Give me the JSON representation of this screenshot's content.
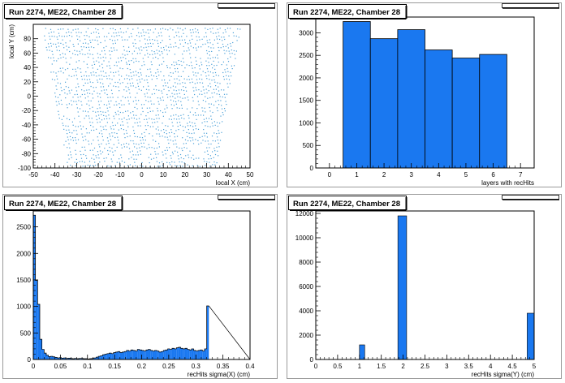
{
  "chart_data": [
    {
      "type": "scatter",
      "title": "Run 2274, ME22, Chamber 28",
      "xlabel": "local X (cm)",
      "ylabel": "local Y (cm)",
      "xlim": [
        -50,
        50
      ],
      "ylim": [
        -100,
        100
      ],
      "xticks": [
        -50,
        -40,
        -30,
        -20,
        -10,
        0,
        10,
        20,
        30,
        40,
        50
      ],
      "yticks": [
        -100,
        -80,
        -60,
        -40,
        -20,
        0,
        20,
        40,
        60,
        80
      ],
      "point_color": "#4aa0d8",
      "description_rows": {
        "y_values": [
          -96,
          -91,
          -86,
          -81,
          -76,
          -71,
          -66,
          -61,
          -56,
          -51,
          -46,
          -41,
          -36,
          -31,
          -26,
          -21,
          -16,
          -11,
          -6,
          -1,
          4,
          9,
          14,
          19,
          24,
          29,
          34,
          39,
          44,
          49,
          54,
          59,
          64,
          69,
          74,
          79,
          84,
          89,
          94
        ],
        "half_width_at_bottom": 34,
        "half_width_at_top": 46
      }
    },
    {
      "type": "bar",
      "title": "Run 2274, ME22, Chamber 28",
      "xlabel": "layers with recHits",
      "ylabel": "",
      "xlim": [
        -0.5,
        7.5
      ],
      "ylim": [
        0,
        3350
      ],
      "xticks": [
        0,
        1,
        2,
        3,
        4,
        5,
        6,
        7
      ],
      "yticks": [
        0,
        500,
        1000,
        1500,
        2000,
        2500,
        3000
      ],
      "categories": [
        1,
        2,
        3,
        4,
        5,
        6
      ],
      "values": [
        3250,
        2870,
        3070,
        2620,
        2440,
        2520
      ],
      "bar_color": "#1a78f0"
    },
    {
      "type": "bar",
      "title": "Run 2274, ME22, Chamber 28",
      "xlabel": "recHits sigma(X) (cm)",
      "ylabel": "",
      "xlim": [
        0,
        0.4
      ],
      "ylim": [
        0,
        2800
      ],
      "xticks": [
        0,
        0.05,
        0.1,
        0.15,
        0.2,
        0.25,
        0.3,
        0.35,
        0.4
      ],
      "yticks": [
        0,
        500,
        1000,
        1500,
        2000,
        2500
      ],
      "bin_start": 0,
      "bin_width": 0.004,
      "values": [
        2720,
        1490,
        1040,
        380,
        190,
        120,
        80,
        55,
        60,
        50,
        40,
        30,
        35,
        25,
        30,
        20,
        25,
        20,
        15,
        20,
        15,
        20,
        20,
        15,
        15,
        10,
        15,
        20,
        30,
        45,
        60,
        70,
        90,
        100,
        110,
        120,
        110,
        130,
        140,
        150,
        130,
        140,
        150,
        170,
        160,
        180,
        170,
        160,
        190,
        180,
        170,
        160,
        180,
        190,
        170,
        160,
        170,
        160,
        140,
        150,
        170,
        180,
        200,
        190,
        210,
        200,
        220,
        230,
        210,
        200,
        210,
        190,
        180,
        200,
        170,
        160,
        170,
        180,
        160,
        200,
        1010
      ],
      "bar_color": "#1a78f0"
    },
    {
      "type": "bar",
      "title": "Run 2274, ME22, Chamber 28",
      "xlabel": "recHits sigma(Y) (cm)",
      "ylabel": "",
      "xlim": [
        0,
        5
      ],
      "ylim": [
        0,
        12200
      ],
      "xticks": [
        0,
        0.5,
        1,
        1.5,
        2,
        2.5,
        3,
        3.5,
        4,
        4.5,
        5
      ],
      "yticks": [
        0,
        2000,
        4000,
        6000,
        8000,
        10000,
        12000
      ],
      "bars": [
        {
          "x0": 1.0,
          "x1": 1.12,
          "value": 1200
        },
        {
          "x0": 1.88,
          "x1": 2.08,
          "value": 11800
        },
        {
          "x0": 4.84,
          "x1": 5.0,
          "value": 3800
        }
      ],
      "bar_color": "#1a78f0"
    }
  ]
}
